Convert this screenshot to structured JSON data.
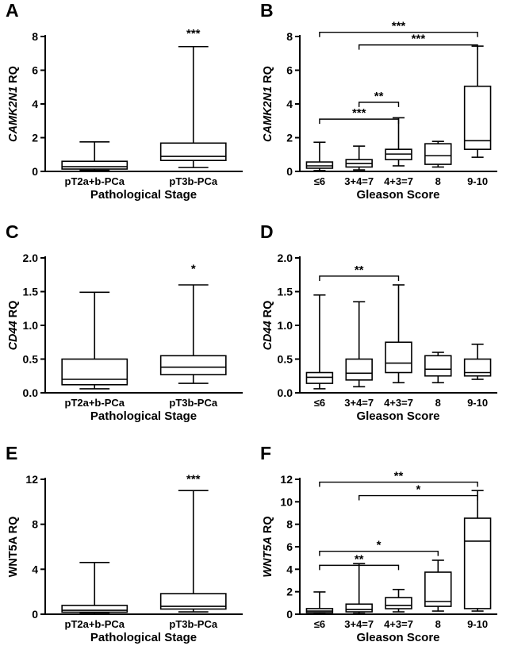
{
  "figure": {
    "background": "#ffffff",
    "line_color": "#000000"
  },
  "chart_data": [
    {
      "type": "boxplot",
      "panel": "A",
      "ylabel_gene": "CAMK2N1",
      "ylabel_rest": " RQ",
      "ylabel_gene_italic": true,
      "xlabel": "Pathological Stage",
      "ylim": [
        0,
        8
      ],
      "yticks": [
        0,
        2,
        4,
        6,
        8
      ],
      "ytick_labels": [
        "0",
        "2",
        "4",
        "6",
        "8"
      ],
      "categories": [
        "pT2a+b-PCa",
        "pT3b-PCa"
      ],
      "boxes": [
        {
          "whisker_low": 0.07,
          "q1": 0.14,
          "median": 0.28,
          "q3": 0.6,
          "whisker_high": 1.75
        },
        {
          "whisker_low": 0.23,
          "q1": 0.65,
          "median": 0.89,
          "q3": 1.68,
          "whisker_high": 7.4
        }
      ],
      "star_annotations": [
        {
          "text": "***",
          "box_index": 1,
          "y": 7.95
        }
      ],
      "brackets": []
    },
    {
      "type": "boxplot",
      "panel": "B",
      "ylabel_gene": "CAMK2N1",
      "ylabel_rest": " RQ",
      "ylabel_gene_italic": true,
      "xlabel": "Gleason Score",
      "ylim": [
        0,
        8
      ],
      "yticks": [
        0,
        2,
        4,
        6,
        8
      ],
      "ytick_labels": [
        "0",
        "2",
        "4",
        "6",
        "8"
      ],
      "categories": [
        "≤6",
        "3+4=7",
        "4+3=7",
        "8",
        "9-10"
      ],
      "boxes": [
        {
          "whisker_low": 0.05,
          "q1": 0.19,
          "median": 0.33,
          "q3": 0.56,
          "whisker_high": 1.73
        },
        {
          "whisker_low": 0.09,
          "q1": 0.26,
          "median": 0.47,
          "q3": 0.7,
          "whisker_high": 1.5
        },
        {
          "whisker_low": 0.33,
          "q1": 0.7,
          "median": 1.03,
          "q3": 1.31,
          "whisker_high": 3.18
        },
        {
          "whisker_low": 0.26,
          "q1": 0.42,
          "median": 0.93,
          "q3": 1.64,
          "whisker_high": 1.78
        },
        {
          "whisker_low": 0.84,
          "q1": 1.31,
          "median": 1.82,
          "q3": 5.05,
          "whisker_high": 7.43
        }
      ],
      "star_annotations": [],
      "brackets": [
        {
          "text": "***",
          "from": 0,
          "to": 4,
          "y": 8.25
        },
        {
          "text": "***",
          "from": 1,
          "to": 4,
          "y": 7.5
        },
        {
          "text": "**",
          "from": 1,
          "to": 2,
          "y": 4.1
        },
        {
          "text": "***",
          "from": 0,
          "to": 2,
          "y": 3.1
        }
      ]
    },
    {
      "type": "boxplot",
      "panel": "C",
      "ylabel_gene": "CD44",
      "ylabel_rest": " RQ",
      "ylabel_gene_italic": true,
      "xlabel": "Pathological Stage",
      "ylim": [
        0,
        2
      ],
      "yticks": [
        0,
        0.5,
        1,
        1.5,
        2
      ],
      "ytick_labels": [
        "0.0",
        "0.5",
        "1.0",
        "1.5",
        "2.0"
      ],
      "categories": [
        "pT2a+b-PCa",
        "pT3b-PCa"
      ],
      "boxes": [
        {
          "whisker_low": 0.06,
          "q1": 0.12,
          "median": 0.2,
          "q3": 0.5,
          "whisker_high": 1.49
        },
        {
          "whisker_low": 0.14,
          "q1": 0.27,
          "median": 0.38,
          "q3": 0.55,
          "whisker_high": 1.6
        }
      ],
      "star_annotations": [
        {
          "text": "*",
          "box_index": 1,
          "y": 1.78
        }
      ],
      "brackets": []
    },
    {
      "type": "boxplot",
      "panel": "D",
      "ylabel_gene": "CD44",
      "ylabel_rest": " RQ",
      "ylabel_gene_italic": true,
      "xlabel": "Gleason Score",
      "ylim": [
        0,
        2
      ],
      "yticks": [
        0,
        0.5,
        1,
        1.5,
        2
      ],
      "ytick_labels": [
        "0.0",
        "0.5",
        "1.0",
        "1.5",
        "2.0"
      ],
      "categories": [
        "≤6",
        "3+4=7",
        "4+3=7",
        "8",
        "9-10"
      ],
      "boxes": [
        {
          "whisker_low": 0.06,
          "q1": 0.14,
          "median": 0.23,
          "q3": 0.3,
          "whisker_high": 1.45
        },
        {
          "whisker_low": 0.09,
          "q1": 0.19,
          "median": 0.29,
          "q3": 0.5,
          "whisker_high": 1.35
        },
        {
          "whisker_low": 0.15,
          "q1": 0.3,
          "median": 0.44,
          "q3": 0.75,
          "whisker_high": 1.6
        },
        {
          "whisker_low": 0.15,
          "q1": 0.25,
          "median": 0.35,
          "q3": 0.55,
          "whisker_high": 0.6
        },
        {
          "whisker_low": 0.2,
          "q1": 0.25,
          "median": 0.3,
          "q3": 0.5,
          "whisker_high": 0.72
        }
      ],
      "star_annotations": [],
      "brackets": [
        {
          "text": "**",
          "from": 0,
          "to": 2,
          "y": 1.73
        }
      ]
    },
    {
      "type": "boxplot",
      "panel": "E",
      "ylabel_gene": "WNT5A",
      "ylabel_rest": " RQ",
      "ylabel_gene_italic": false,
      "xlabel": "Pathological Stage",
      "ylim": [
        0,
        12
      ],
      "yticks": [
        0,
        4,
        8,
        12
      ],
      "ytick_labels": [
        "0",
        "4",
        "8",
        "12"
      ],
      "categories": [
        "pT2a+b-PCa",
        "pT3b-PCa"
      ],
      "boxes": [
        {
          "whisker_low": 0.07,
          "q1": 0.18,
          "median": 0.35,
          "q3": 0.78,
          "whisker_high": 4.6
        },
        {
          "whisker_low": 0.21,
          "q1": 0.46,
          "median": 0.7,
          "q3": 1.83,
          "whisker_high": 11.0
        }
      ],
      "star_annotations": [
        {
          "text": "***",
          "box_index": 1,
          "y": 11.7
        }
      ],
      "brackets": []
    },
    {
      "type": "boxplot",
      "panel": "F",
      "ylabel_gene": "WNT5A",
      "ylabel_rest": " RQ",
      "ylabel_gene_italic": true,
      "xlabel": "Gleason Score",
      "ylim": [
        0,
        12
      ],
      "yticks": [
        0,
        2,
        4,
        6,
        8,
        10,
        12
      ],
      "ytick_labels": [
        "0",
        "2",
        "4",
        "6",
        "8",
        "10",
        "12"
      ],
      "categories": [
        "≤6",
        "3+4=7",
        "4+3=7",
        "8",
        "9-10"
      ],
      "boxes": [
        {
          "whisker_low": 0.04,
          "q1": 0.14,
          "median": 0.28,
          "q3": 0.5,
          "whisker_high": 1.98
        },
        {
          "whisker_low": 0.07,
          "q1": 0.21,
          "median": 0.42,
          "q3": 0.9,
          "whisker_high": 4.5
        },
        {
          "whisker_low": 0.21,
          "q1": 0.49,
          "median": 0.78,
          "q3": 1.48,
          "whisker_high": 2.2
        },
        {
          "whisker_low": 0.28,
          "q1": 0.7,
          "median": 1.13,
          "q3": 3.74,
          "whisker_high": 4.8
        },
        {
          "whisker_low": 0.28,
          "q1": 0.5,
          "median": 6.5,
          "q3": 8.54,
          "whisker_high": 11.0
        }
      ],
      "star_annotations": [],
      "brackets": [
        {
          "text": "**",
          "from": 0,
          "to": 4,
          "y": 11.75
        },
        {
          "text": "*",
          "from": 1,
          "to": 4,
          "y": 10.55
        },
        {
          "text": "*",
          "from": 0,
          "to": 3,
          "y": 5.6
        },
        {
          "text": "**",
          "from": 0,
          "to": 2,
          "y": 4.35
        }
      ]
    }
  ]
}
